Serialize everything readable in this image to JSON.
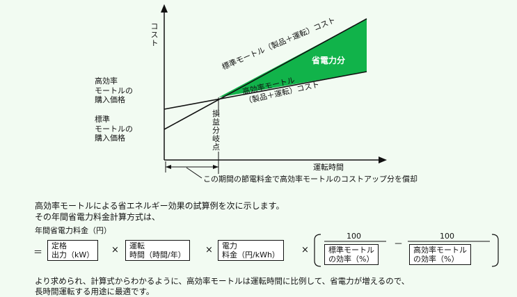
{
  "diagram": {
    "y_axis_label": "コスト",
    "x_axis_label": "運転時間",
    "label_high_eff_price": "高効率\nモートルの\n購入価格",
    "label_std_price": "標準\nモートルの\n購入価格",
    "label_std_line": "標準モートル（製品＋運転）コスト",
    "label_high_line": "高効率モートル\n（製品＋運転）コスト",
    "label_saving": "省電力分",
    "label_breakeven": "損\n益\n分\n岐\n点",
    "label_payback": "この期間の節電料金で高効率モートルのコストアップ分を償却",
    "fill_color": "#11b34a"
  },
  "text": {
    "intro_line1": "高効率モートルによる省エネルギー効果の試算例を次に示します。",
    "intro_line2": "その年間省電力料金計算方式は、",
    "formula_title": "年間省電力料金（円）",
    "conclusion_line1": "より求められ、計算式からわかるように、高効率モートルは運転時間に比例して、省電力が増えるので、",
    "conclusion_line2": "長時間運転する用途に最適です。"
  },
  "formula": {
    "equals": "＝",
    "times": "×",
    "minus": "－",
    "term1": "定格\n出力（kW）",
    "term2": "運転\n時間（時間/年）",
    "term3": "電力\n料金（円/kWh）",
    "num1": "100",
    "den1": "標準モートル\nの効率（%）",
    "num2": "100",
    "den2": "高効率モートル\nの効率（%）"
  }
}
